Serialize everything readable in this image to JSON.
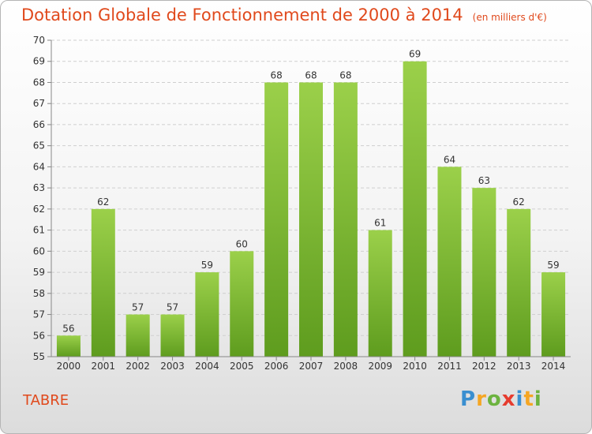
{
  "title": "Dotation Globale de Fonctionnement de 2000 à 2014",
  "unit": "(en milliers d'€)",
  "commune": "TABRE",
  "brand": {
    "letters": [
      "P",
      "r",
      "o",
      "x",
      "i",
      "t",
      "i"
    ],
    "colors": [
      "#3a8fd0",
      "#f5a623",
      "#6cb33f",
      "#e63c2f",
      "#3a8fd0",
      "#f5a623",
      "#6cb33f"
    ]
  },
  "chart_data": {
    "type": "bar",
    "categories": [
      "2000",
      "2001",
      "2002",
      "2003",
      "2004",
      "2005",
      "2006",
      "2007",
      "2008",
      "2009",
      "2010",
      "2011",
      "2012",
      "2013",
      "2014"
    ],
    "values": [
      56,
      62,
      57,
      57,
      59,
      60,
      68,
      68,
      68,
      61,
      69,
      64,
      63,
      62,
      59
    ],
    "ylim": [
      55,
      70
    ],
    "yticks": [
      55,
      56,
      57,
      58,
      59,
      60,
      61,
      62,
      63,
      64,
      65,
      66,
      67,
      68,
      69,
      70
    ],
    "grid": true,
    "bar_color_top": "#9bd04a",
    "bar_color_bottom": "#5e9c1e"
  }
}
